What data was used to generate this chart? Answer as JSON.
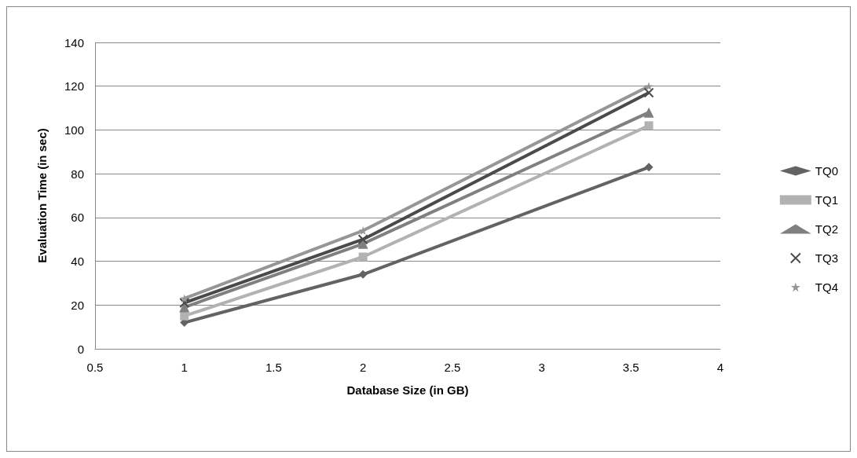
{
  "chart_data": {
    "type": "line",
    "xlabel": "Database Size (in GB)",
    "ylabel": "Evaluation Time (in sec)",
    "x": [
      1,
      2,
      3.6
    ],
    "series": [
      {
        "name": "TQ0",
        "color": "#636363",
        "marker": "diamond",
        "values": [
          12,
          34,
          83
        ]
      },
      {
        "name": "TQ1",
        "color": "#b2b2b2",
        "marker": "square",
        "values": [
          15,
          42,
          102
        ]
      },
      {
        "name": "TQ2",
        "color": "#808080",
        "marker": "triangle",
        "values": [
          19,
          48,
          108
        ]
      },
      {
        "name": "TQ3",
        "color": "#4a4a4a",
        "marker": "cross",
        "values": [
          21,
          50,
          117
        ]
      },
      {
        "name": "TQ4",
        "color": "#969696",
        "marker": "star",
        "values": [
          23,
          54,
          120
        ]
      }
    ],
    "xlim": [
      0.5,
      4
    ],
    "xticks": [
      0.5,
      1,
      1.5,
      2,
      2.5,
      3,
      3.5,
      4
    ],
    "ylim": [
      0,
      140
    ],
    "yticks": [
      0,
      20,
      40,
      60,
      80,
      100,
      120,
      140
    ],
    "grid": "y",
    "legend": "right",
    "line_style": "solid"
  }
}
